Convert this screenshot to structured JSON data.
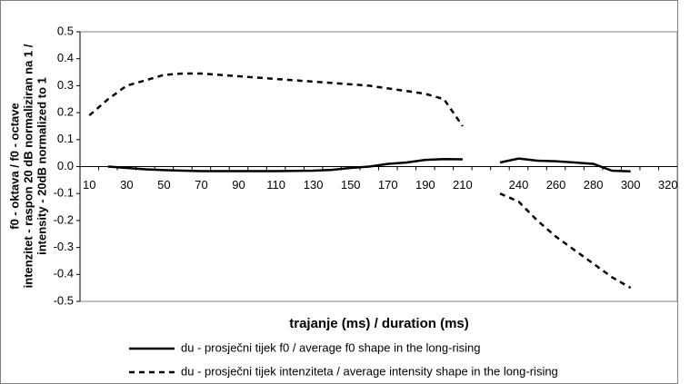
{
  "chart_data": {
    "type": "line",
    "xlabel": "trajanje (ms) / duration (ms)",
    "ylabel": [
      "f0 - oktava / f0 - octave",
      "intenzitet - raspon 20 dB normaliziran na 1 /",
      "intensity - 20dB normalized to 1"
    ],
    "categories": [
      "10",
      null,
      "30",
      null,
      "50",
      null,
      "70",
      null,
      "90",
      null,
      "110",
      null,
      "130",
      null,
      "150",
      null,
      "170",
      null,
      "190",
      null,
      "210",
      null,
      null,
      "240",
      null,
      "260",
      null,
      "280",
      null,
      "300",
      null,
      "320"
    ],
    "series": [
      {
        "name": "du - prosječni tijek f0 / average f0 shape in the long-rising",
        "color": "#000000",
        "dash": "solid",
        "values": [
          null,
          0.0,
          -0.005,
          -0.01,
          -0.013,
          -0.015,
          -0.017,
          -0.017,
          -0.017,
          -0.017,
          -0.017,
          -0.016,
          -0.015,
          -0.012,
          -0.005,
          0.0,
          0.01,
          0.015,
          0.025,
          0.028,
          0.027,
          null,
          0.015,
          0.03,
          0.022,
          0.02,
          0.015,
          0.01,
          -0.015,
          -0.018,
          null,
          null
        ]
      },
      {
        "name": "du - prosječni tijek intenziteta / average intensity shape in the long-rising",
        "color": "#000000",
        "dash": "dashed",
        "values": [
          0.19,
          0.25,
          0.3,
          0.32,
          0.34,
          0.345,
          0.345,
          0.34,
          0.335,
          0.33,
          0.325,
          0.32,
          0.315,
          0.31,
          0.305,
          0.3,
          0.29,
          0.28,
          0.27,
          0.25,
          0.15,
          null,
          -0.1,
          -0.13,
          -0.2,
          -0.26,
          -0.31,
          -0.36,
          -0.41,
          -0.45,
          null,
          null
        ]
      }
    ],
    "ylim": [
      -0.5,
      0.5
    ],
    "yticks": [
      -0.5,
      -0.4,
      -0.3,
      -0.2,
      -0.1,
      {
        "value": 0,
        "label": "0.0"
      },
      0.1,
      0.2,
      0.3,
      0.4,
      0.5
    ],
    "grid": false,
    "legend": "bottom"
  }
}
